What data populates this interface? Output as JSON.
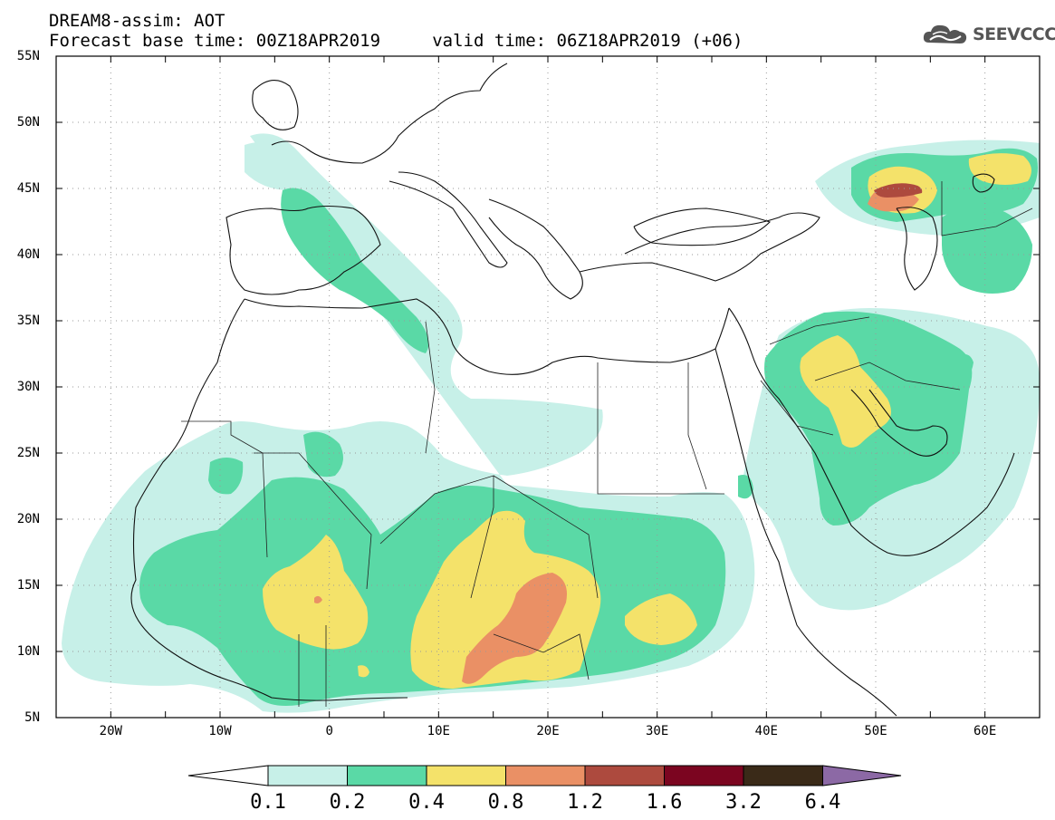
{
  "title": {
    "line1": "DREAM8-assim: AOT",
    "line2": "Forecast base time: 00Z18APR2019     valid time: 06Z18APR2019 (+06)"
  },
  "logo": {
    "text": "SEEVCCC",
    "icon": "cloud-icon"
  },
  "axes": {
    "lat_labels": [
      "55N",
      "50N",
      "45N",
      "40N",
      "35N",
      "30N",
      "25N",
      "20N",
      "15N",
      "10N",
      "5N"
    ],
    "lon_labels": [
      "20W",
      "10W",
      "0",
      "10E",
      "20E",
      "30E",
      "40E",
      "50E",
      "60E"
    ],
    "lon_range": [
      -25,
      65
    ],
    "lat_range": [
      5,
      55
    ]
  },
  "colorbar": {
    "labels": [
      "0.1",
      "0.2",
      "0.4",
      "0.8",
      "1.2",
      "1.6",
      "3.2",
      "6.4"
    ],
    "colors": [
      "#c7f0e8",
      "#5ad9a6",
      "#f4e26a",
      "#ea9065",
      "#ad4a3e",
      "#7b0520",
      "#3a2a18"
    ],
    "under_color": "#ffffff",
    "over_color": "#8c69a5"
  },
  "field_colors": {
    "c01": "#c7f0e8",
    "c02": "#5ad9a6",
    "c04": "#f4e26a",
    "c08": "#ea9065",
    "c12": "#ad4a3e"
  }
}
